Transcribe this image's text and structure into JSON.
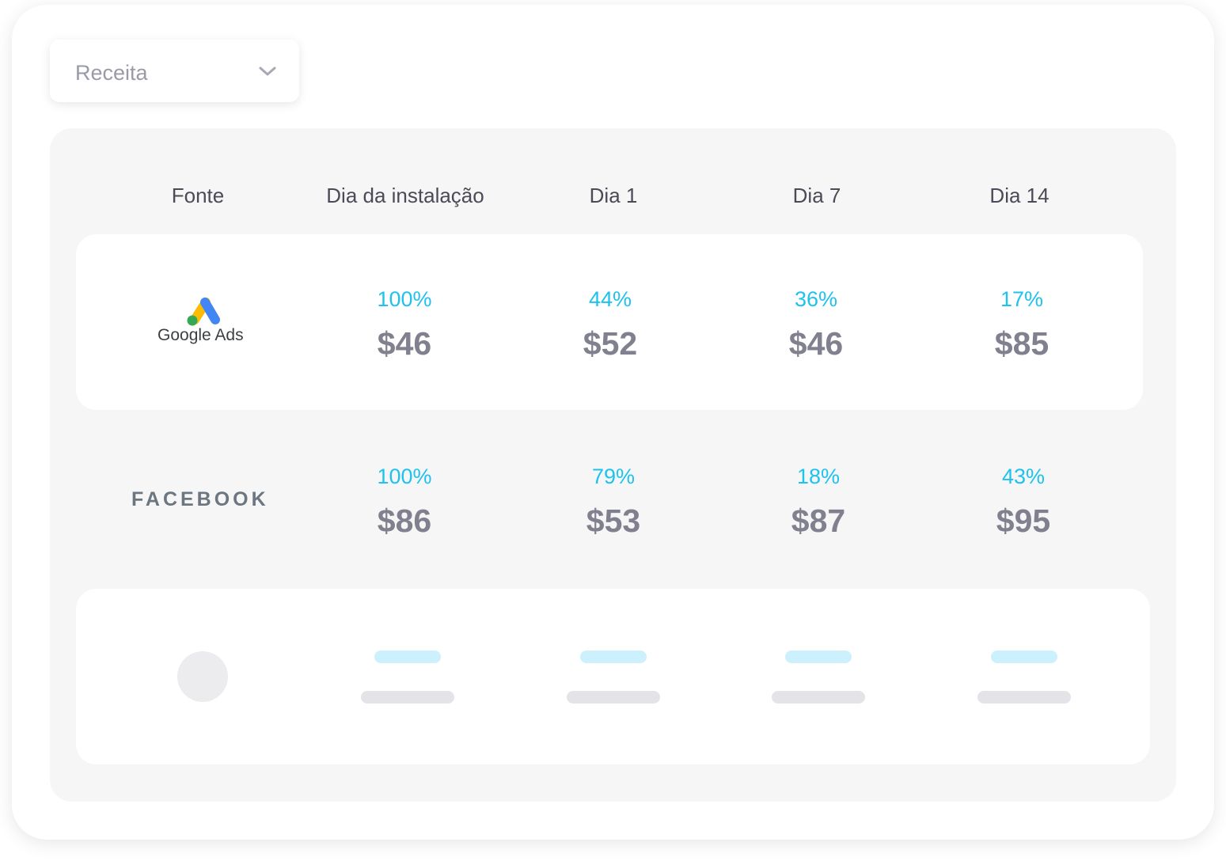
{
  "dropdown": {
    "label": "Receita",
    "icon": "chevron-down-icon"
  },
  "table": {
    "headers": [
      "Fonte",
      "Dia da instalação",
      "Dia 1",
      "Dia 7",
      "Dia 14"
    ],
    "rows": [
      {
        "source": "Google Ads",
        "cells": [
          {
            "pct": "100%",
            "value": "$46"
          },
          {
            "pct": "44%",
            "value": "$52"
          },
          {
            "pct": "36%",
            "value": "$46"
          },
          {
            "pct": "17%",
            "value": "$85"
          }
        ]
      },
      {
        "source": "FACEBOOK",
        "cells": [
          {
            "pct": "100%",
            "value": "$86"
          },
          {
            "pct": "79%",
            "value": "$53"
          },
          {
            "pct": "18%",
            "value": "$87"
          },
          {
            "pct": "43%",
            "value": "$95"
          }
        ]
      }
    ]
  },
  "colors": {
    "percent": "#1ec2ee",
    "value": "#80808e",
    "header": "#4b4b58",
    "panel": "#f6f6f6",
    "skeleton_blue": "#ccf0fc",
    "skeleton_gray": "#e4e3e8"
  }
}
